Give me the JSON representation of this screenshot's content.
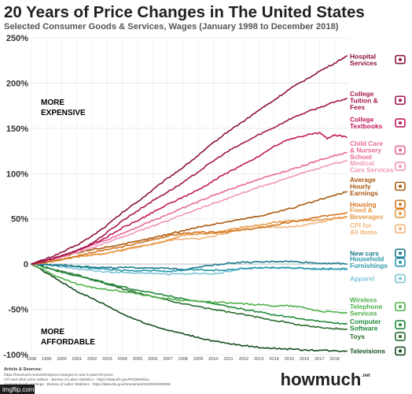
{
  "chart_data": {
    "type": "line",
    "title": "20 Years of Price Changes in The United States",
    "subtitle": "Selected Consumer Goods & Services, Wages (January 1998 to December 2018)",
    "x_ticks": [
      "1998",
      "1999",
      "2000",
      "2001",
      "2002",
      "2003",
      "2004",
      "2005",
      "2006",
      "2007",
      "2008",
      "2009",
      "2010",
      "2011",
      "2012",
      "2013",
      "2014",
      "2015",
      "2016",
      "2017",
      "2018"
    ],
    "y_ticks": [
      "250%",
      "200%",
      "150%",
      "100%",
      "50%",
      "0",
      "-50%",
      "-100%"
    ],
    "ylim": [
      -100,
      250
    ],
    "xlim": [
      1998,
      2018.9
    ],
    "grid": true,
    "regions": {
      "upper": [
        "MORE",
        "EXPENSIVE"
      ],
      "lower": [
        "MORE",
        "AFFORDABLE"
      ]
    },
    "colors": {
      "upper_region": "#a0155a",
      "lower_region": "#2e9a3a"
    },
    "series": [
      {
        "name": "Hospital Services",
        "label_lines": [
          "Hospital",
          "Services"
        ],
        "color": "#8c1436",
        "x": [
          1998,
          1999,
          2000,
          2001,
          2002,
          2003,
          2004,
          2005,
          2006,
          2007,
          2008,
          2009,
          2010,
          2011,
          2012,
          2013,
          2014,
          2015,
          2016,
          2017,
          2018,
          2018.8
        ],
        "values": [
          0,
          6,
          13,
          21,
          31,
          43,
          57,
          69,
          82,
          95,
          107,
          120,
          134,
          147,
          158,
          170,
          181,
          193,
          203,
          213,
          222,
          230
        ]
      },
      {
        "name": "College Tuition & Fees",
        "label_lines": [
          "College",
          "Tuition &",
          "Fees"
        ],
        "color": "#a3164e",
        "x": [
          1998,
          1999,
          2000,
          2001,
          2002,
          2003,
          2004,
          2005,
          2006,
          2007,
          2008,
          2009,
          2010,
          2011,
          2012,
          2013,
          2014,
          2015,
          2016,
          2017,
          2018,
          2018.8
        ],
        "values": [
          0,
          4,
          9,
          15,
          23,
          35,
          48,
          59,
          70,
          80,
          90,
          102,
          114,
          125,
          134,
          143,
          151,
          160,
          167,
          173,
          179,
          183
        ]
      },
      {
        "name": "College Textbooks",
        "label_lines": [
          "College",
          "Textbooks"
        ],
        "color": "#c2185b",
        "x": [
          1998,
          1999,
          2000,
          2001,
          2002,
          2003,
          2004,
          2005,
          2006,
          2007,
          2008,
          2009,
          2010,
          2011,
          2012,
          2013,
          2014,
          2015,
          2016,
          2017,
          2017.5,
          2018,
          2018.8
        ],
        "values": [
          0,
          4,
          9,
          15,
          22,
          30,
          40,
          48,
          57,
          66,
          74,
          82,
          92,
          102,
          110,
          119,
          130,
          138,
          142,
          145,
          139,
          143,
          140
        ]
      },
      {
        "name": "Child Care & Nursery School",
        "label_lines": [
          "Child Care",
          "& Nursery",
          "School"
        ],
        "color": "#e8699a",
        "x": [
          1998,
          1999,
          2000,
          2001,
          2002,
          2003,
          2004,
          2005,
          2006,
          2007,
          2008,
          2009,
          2010,
          2011,
          2012,
          2013,
          2014,
          2015,
          2016,
          2017,
          2018,
          2018.8
        ],
        "values": [
          0,
          4,
          9,
          15,
          21,
          27,
          34,
          41,
          48,
          55,
          62,
          69,
          76,
          82,
          88,
          94,
          99,
          104,
          109,
          115,
          120,
          123
        ]
      },
      {
        "name": "Medical Care Services",
        "label_lines": [
          "Medical",
          "Care Services"
        ],
        "color": "#f097b8",
        "x": [
          1998,
          1999,
          2000,
          2001,
          2002,
          2003,
          2004,
          2005,
          2006,
          2007,
          2008,
          2009,
          2010,
          2011,
          2012,
          2013,
          2014,
          2015,
          2016,
          2017,
          2018,
          2018.8
        ],
        "values": [
          0,
          4,
          8,
          13,
          18,
          24,
          30,
          36,
          42,
          48,
          55,
          61,
          67,
          73,
          79,
          85,
          90,
          96,
          101,
          106,
          111,
          114
        ]
      },
      {
        "name": "Average Hourly Earnings",
        "label_lines": [
          "Average",
          "Hourly",
          "Earnings"
        ],
        "color": "#a9590f",
        "x": [
          1998,
          1999,
          2000,
          2001,
          2002,
          2003,
          2004,
          2005,
          2006,
          2007,
          2008,
          2009,
          2010,
          2011,
          2012,
          2013,
          2014,
          2015,
          2016,
          2017,
          2018,
          2018.8
        ],
        "values": [
          0,
          4,
          8,
          12,
          16,
          19,
          22,
          25,
          29,
          33,
          37,
          41,
          44,
          47,
          50,
          53,
          57,
          61,
          66,
          71,
          76,
          80
        ]
      },
      {
        "name": "Housing",
        "label_lines": [
          "Housing"
        ],
        "color": "#d2741f",
        "x": [
          1998,
          1999,
          2000,
          2001,
          2002,
          2003,
          2004,
          2005,
          2006,
          2007,
          2008,
          2009,
          2010,
          2011,
          2012,
          2013,
          2014,
          2015,
          2016,
          2017,
          2018,
          2018.8
        ],
        "values": [
          0,
          2,
          5,
          9,
          13,
          16,
          19,
          23,
          27,
          31,
          34,
          35,
          35,
          36,
          38,
          40,
          43,
          46,
          49,
          52,
          55,
          57
        ]
      },
      {
        "name": "Food & Beverages",
        "label_lines": [
          "Food &",
          "Beverages"
        ],
        "color": "#e59a46",
        "x": [
          1998,
          1999,
          2000,
          2001,
          2002,
          2003,
          2004,
          2005,
          2006,
          2007,
          2008,
          2009,
          2010,
          2011,
          2012,
          2013,
          2014,
          2015,
          2016,
          2017,
          2018,
          2018.8
        ],
        "values": [
          0,
          2,
          5,
          8,
          10,
          12,
          16,
          19,
          22,
          26,
          32,
          33,
          34,
          38,
          41,
          43,
          46,
          48,
          48,
          49,
          51,
          52
        ]
      },
      {
        "name": "CPI for All Items",
        "label_lines": [
          "CPI for",
          "All Items"
        ],
        "color": "#f2b57c",
        "x": [
          1998,
          1999,
          2000,
          2001,
          2002,
          2003,
          2004,
          2005,
          2006,
          2007,
          2008,
          2009,
          2010,
          2011,
          2012,
          2013,
          2014,
          2015,
          2016,
          2017,
          2018,
          2018.8
        ],
        "values": [
          0,
          2,
          6,
          8,
          10,
          12,
          15,
          19,
          22,
          26,
          28,
          28,
          31,
          35,
          38,
          40,
          41,
          41,
          43,
          46,
          50,
          52
        ]
      },
      {
        "name": "New cars",
        "label_lines": [
          "New cars"
        ],
        "color": "#1b7a8c",
        "x": [
          1998,
          1999,
          2000,
          2001,
          2002,
          2003,
          2004,
          2005,
          2006,
          2007,
          2008,
          2009,
          2010,
          2011,
          2012,
          2013,
          2014,
          2015,
          2016,
          2017,
          2018,
          2018.8
        ],
        "values": [
          0,
          -1,
          -1,
          -2,
          -3,
          -4,
          -4,
          -4,
          -4,
          -5,
          -6,
          -3,
          -1,
          1,
          2,
          2,
          3,
          3,
          2,
          1,
          1,
          0
        ]
      },
      {
        "name": "Household Furnishings",
        "label_lines": [
          "Household",
          "Furnishings"
        ],
        "color": "#2b96ad",
        "x": [
          1998,
          1999,
          2000,
          2001,
          2002,
          2003,
          2004,
          2005,
          2006,
          2007,
          2008,
          2009,
          2010,
          2011,
          2012,
          2013,
          2014,
          2015,
          2016,
          2017,
          2018,
          2018.8
        ],
        "values": [
          0,
          -1,
          -2,
          -3,
          -5,
          -6,
          -7,
          -7,
          -7,
          -8,
          -7,
          -6,
          -7,
          -6,
          -5,
          -4,
          -4,
          -4,
          -5,
          -5,
          -5,
          -5
        ]
      },
      {
        "name": "Apparel",
        "label_lines": [
          "Apparel"
        ],
        "color": "#7fc6d6",
        "x": [
          1998,
          1999,
          2000,
          2001,
          2002,
          2003,
          2004,
          2005,
          2006,
          2007,
          2008,
          2009,
          2010,
          2011,
          2012,
          2013,
          2014,
          2015,
          2016,
          2017,
          2018,
          2018.8
        ],
        "values": [
          0,
          -1,
          -3,
          -5,
          -7,
          -9,
          -9,
          -10,
          -10,
          -11,
          -11,
          -10,
          -11,
          -8,
          -5,
          -4,
          -4,
          -4,
          -5,
          -6,
          -6,
          -6
        ]
      },
      {
        "name": "Wireless Telephone Services",
        "label_lines": [
          "Wireless",
          "Telephone",
          "Services"
        ],
        "color": "#4db04a",
        "x": [
          1998,
          1999,
          2000,
          2001,
          2002,
          2003,
          2004,
          2005,
          2006,
          2007,
          2008,
          2009,
          2010,
          2011,
          2012,
          2013,
          2014,
          2015,
          2016,
          2017,
          2018,
          2018.8
        ],
        "values": [
          0,
          -8,
          -16,
          -22,
          -26,
          -28,
          -30,
          -33,
          -36,
          -38,
          -40,
          -41,
          -42,
          -43,
          -44,
          -45,
          -46,
          -46,
          -48,
          -52,
          -53,
          -54
        ]
      },
      {
        "name": "Computer Software",
        "label_lines": [
          "Computer",
          "Software"
        ],
        "color": "#1f8a3c",
        "x": [
          1998,
          1999,
          2000,
          2001,
          2002,
          2003,
          2004,
          2005,
          2006,
          2007,
          2008,
          2009,
          2010,
          2011,
          2012,
          2013,
          2014,
          2015,
          2016,
          2017,
          2018,
          2018.8
        ],
        "values": [
          0,
          -4,
          -9,
          -13,
          -17,
          -21,
          -25,
          -29,
          -32,
          -35,
          -38,
          -41,
          -44,
          -47,
          -50,
          -53,
          -56,
          -58,
          -61,
          -63,
          -65,
          -66
        ]
      },
      {
        "name": "Toys",
        "label_lines": [
          "Toys"
        ],
        "color": "#2a6b2e",
        "x": [
          1998,
          1999,
          2000,
          2001,
          2002,
          2003,
          2004,
          2005,
          2006,
          2007,
          2008,
          2009,
          2010,
          2011,
          2012,
          2013,
          2014,
          2015,
          2016,
          2017,
          2018,
          2018.8
        ],
        "values": [
          0,
          -4,
          -8,
          -12,
          -17,
          -22,
          -27,
          -32,
          -36,
          -40,
          -44,
          -47,
          -50,
          -53,
          -56,
          -59,
          -62,
          -65,
          -68,
          -70,
          -71,
          -72
        ]
      },
      {
        "name": "Televisions",
        "label_lines": [
          "Televisions"
        ],
        "color": "#174d22",
        "x": [
          1998,
          1999,
          2000,
          2001,
          2002,
          2003,
          2004,
          2005,
          2006,
          2007,
          2008,
          2009,
          2010,
          2011,
          2012,
          2013,
          2014,
          2015,
          2016,
          2017,
          2018,
          2018.8
        ],
        "values": [
          0,
          -10,
          -20,
          -30,
          -38,
          -46,
          -55,
          -62,
          -68,
          -73,
          -77,
          -81,
          -85,
          -88,
          -90,
          -92,
          -93,
          -94,
          -95,
          -95,
          -96,
          -96
        ]
      }
    ],
    "label_rows": [
      {
        "series": 0,
        "value": 226
      },
      {
        "series": 1,
        "value": 181
      },
      {
        "series": 2,
        "value": 156
      },
      {
        "series": 3,
        "value": 126
      },
      {
        "series": 4,
        "value": 108
      },
      {
        "series": 5,
        "value": 86
      },
      {
        "series": 6,
        "value": 66
      },
      {
        "series": 7,
        "value": 56
      },
      {
        "series": 8,
        "value": 39
      },
      {
        "series": 9,
        "value": 12
      },
      {
        "series": 10,
        "value": 2
      },
      {
        "series": 11,
        "value": -16
      },
      {
        "series": 12,
        "value": -47
      },
      {
        "series": 13,
        "value": -67
      },
      {
        "series": 14,
        "value": -80
      },
      {
        "series": 15,
        "value": -96
      }
    ],
    "sources": {
      "heading": "Article & Sources:",
      "lines": [
        "https://howmuch.net/articles/price-changes-in-usa-in-past-20-years",
        "CPI and other price indices - Bureau of Labor Statistics - https://data.bls.gov/PDQWeb/cu",
        "Average hourly earnings - Bureau of Labor Statistics - https://data.bls.gov/timeseries/CES0500000008"
      ]
    }
  },
  "branding": {
    "name": "howmuch",
    "suffix": ".net"
  },
  "watermark": {
    "text": "imgflip.com"
  }
}
